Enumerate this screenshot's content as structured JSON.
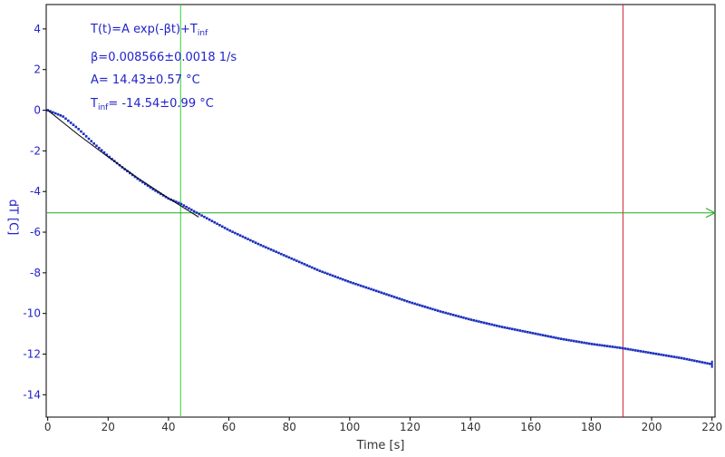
{
  "chart_data": {
    "type": "scatter",
    "xlabel": "Time [s]",
    "ylabel": "dT [C]",
    "xlim": [
      -0.5,
      221
    ],
    "ylim": [
      -15.1,
      5.2
    ],
    "x_ticks": [
      "0",
      "20",
      "40",
      "60",
      "80",
      "100",
      "120",
      "140",
      "160",
      "180",
      "200",
      "220"
    ],
    "y_ticks": [
      "4",
      "2",
      "0",
      "-2",
      "-4",
      "-6",
      "-8",
      "-10",
      "-12",
      "-14"
    ],
    "annotation": {
      "line1": "T(t)=A exp(-βt)+T",
      "line1_sub": "inf",
      "line2": "β=0.008566±0.0018 1/s",
      "line3": "A= 14.43±0.57 °C",
      "line4_prefix": "T",
      "line4_sub": "inf",
      "line4_rest": "= -14.54±0.99 °C"
    },
    "cursors": {
      "green_vertical_x": 44,
      "red_vertical_x": 190.5,
      "green_horizontal_y": -5.05
    },
    "series": [
      {
        "type": "scatter",
        "x": [
          0,
          5,
          10,
          15,
          20,
          25,
          30,
          35,
          40,
          44,
          50,
          55,
          60,
          70,
          80,
          90,
          100,
          110,
          120,
          130,
          140,
          150,
          160,
          170,
          180,
          190,
          200,
          210,
          220
        ],
        "y": [
          0,
          -0.3,
          -0.9,
          -1.6,
          -2.25,
          -2.85,
          -3.4,
          -3.9,
          -4.35,
          -4.6,
          -5.1,
          -5.5,
          -5.9,
          -6.6,
          -7.25,
          -7.9,
          -8.45,
          -8.95,
          -9.45,
          -9.9,
          -10.3,
          -10.65,
          -10.95,
          -11.25,
          -11.5,
          -11.7,
          -11.95,
          -12.2,
          -12.5
        ]
      },
      {
        "type": "line",
        "x": [
          0,
          10,
          20,
          30,
          40,
          50
        ],
        "y": [
          0,
          -1.19,
          -2.3,
          -3.35,
          -4.33,
          -5.26
        ]
      }
    ],
    "colors": {
      "data": "#1a2fc0",
      "fit": "#000000",
      "green_cursor": "#22aa22",
      "green_vertical": "#33cc33",
      "red_cursor": "#cc2233",
      "tick_labels_y": "#2222cc",
      "tick_labels_x": "#333333",
      "axes": "#000000"
    }
  }
}
